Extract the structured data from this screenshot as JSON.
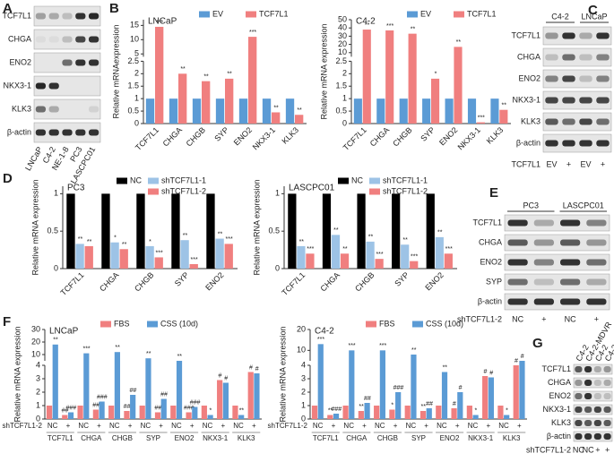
{
  "panel_letters": [
    "A",
    "B",
    "C",
    "D",
    "E",
    "F",
    "G"
  ],
  "blots": [
    {
      "rows": [
        "TCF7L1",
        "CHGA",
        "ENO2",
        "NKX3-1",
        "KLK3",
        "β-actin"
      ],
      "columns": [
        "LNCaP",
        "C4-2",
        "NE-1-8",
        "PC3",
        "LASCPC01"
      ]
    },
    {
      "headers": [
        "C4-2",
        "LNCaP"
      ],
      "rows": [
        "TCF7L1",
        "CHGA",
        "ENO2",
        "NKX3-1",
        "KLK3",
        "β-actin"
      ],
      "condition_label": "TCF7L1",
      "conditions": [
        "EV",
        "+",
        "EV",
        "+"
      ]
    },
    {
      "headers": [
        "PC3",
        "LASCPC01"
      ],
      "rows": [
        "TCF7L1",
        "CHGA",
        "ENO2",
        "SYP",
        "β-actin"
      ],
      "condition_label": "shTCF7L1-2",
      "conditions": [
        "NC",
        "+",
        "NC",
        "+"
      ]
    },
    {
      "columns": [
        "C4-2",
        "C4-2-MDVR",
        "C4-2",
        "C4-2-MDVR"
      ],
      "rows": [
        "TCF7L1",
        "CHGA",
        "ENO2",
        "NKX3-1",
        "KLK3",
        "β-actin"
      ],
      "condition_label": "shTCF7L1-2",
      "conditions": [
        "NC",
        "NC",
        "+",
        "+"
      ]
    }
  ],
  "chart_data": [
    {
      "type": "bar",
      "title": "LNCaP",
      "ylabel": "Relative mRNAexpression",
      "categories": [
        "TCF7L1",
        "CHGA",
        "CHGB",
        "SYP",
        "ENO2",
        "NKX3-1",
        "KLK3"
      ],
      "segments": [
        {
          "ylim": [
            0,
            2.5
          ],
          "yticks": [
            0,
            0.5,
            1,
            1.5,
            2,
            2.5
          ]
        },
        {
          "ylim": [
            4,
            17
          ],
          "yticks": [
            5,
            10,
            15
          ]
        }
      ],
      "series": [
        {
          "name": "EV",
          "color": "#5b9bd5",
          "values": [
            1,
            1,
            1,
            1,
            1,
            1,
            1
          ]
        },
        {
          "name": "TCF7L1",
          "color": "#f07f7f",
          "values": [
            14.5,
            2.0,
            1.7,
            1.8,
            11,
            0.45,
            0.35
          ],
          "annotations": [
            "***",
            "**",
            "**",
            "**",
            "***",
            "**",
            "**"
          ]
        }
      ]
    },
    {
      "type": "bar",
      "title": "C4-2",
      "ylabel": "Relative mRNA expression",
      "categories": [
        "TCF7L1",
        "CHGA",
        "CHGB",
        "SYP",
        "ENO2",
        "NKX3-1",
        "KLK3"
      ],
      "segments": [
        {
          "ylim": [
            0,
            2.5
          ],
          "yticks": [
            0,
            0.5,
            1,
            1.5,
            2,
            2.5
          ]
        },
        {
          "ylim": [
            5,
            50
          ],
          "yticks": [
            10,
            20,
            30,
            40,
            50
          ]
        }
      ],
      "series": [
        {
          "name": "EV",
          "color": "#5b9bd5",
          "values": [
            1,
            1,
            1,
            1,
            1,
            1,
            1
          ]
        },
        {
          "name": "TCF7L1",
          "color": "#f07f7f",
          "values": [
            38,
            37,
            33,
            1.8,
            17,
            0.05,
            0.55
          ],
          "annotations": [
            "**",
            "***",
            "**",
            "*",
            "**",
            "***",
            "**"
          ]
        }
      ]
    },
    {
      "type": "bar",
      "title": "PC3",
      "ylabel": "Relative mRNA expression",
      "categories": [
        "TCF7L1",
        "CHGA",
        "CHGB",
        "SYP",
        "ENO2"
      ],
      "segments": [
        {
          "ylim": [
            0,
            1.1
          ],
          "yticks": [
            0,
            0.5,
            1
          ]
        }
      ],
      "series": [
        {
          "name": "NC",
          "color": "#000000",
          "values": [
            1,
            1,
            1,
            1,
            1
          ]
        },
        {
          "name": "shTCF7L1-1",
          "color": "#9dc3e6",
          "values": [
            0.33,
            0.35,
            0.3,
            0.38,
            0.4
          ],
          "annotations": [
            "**",
            "*",
            "*",
            "**",
            "**"
          ]
        },
        {
          "name": "shTCF7L1-2",
          "color": "#f07f7f",
          "values": [
            0.3,
            0.26,
            0.15,
            0.06,
            0.33
          ],
          "annotations": [
            "**",
            "**",
            "***",
            "***",
            "***"
          ]
        }
      ]
    },
    {
      "type": "bar",
      "title": "LASCPC01",
      "ylabel": "Relative mRNA expression",
      "categories": [
        "TCF7L1",
        "CHGA",
        "CHGB",
        "SYP",
        "ENO2"
      ],
      "segments": [
        {
          "ylim": [
            0,
            1.1
          ],
          "yticks": [
            0,
            0.5,
            1
          ]
        }
      ],
      "series": [
        {
          "name": "NC",
          "color": "#000000",
          "values": [
            1,
            1,
            1,
            1,
            1
          ]
        },
        {
          "name": "shTCF7L1-1",
          "color": "#9dc3e6",
          "values": [
            0.3,
            0.45,
            0.36,
            0.32,
            0.42
          ],
          "annotations": [
            "**",
            "**",
            "**",
            "**",
            "**"
          ]
        },
        {
          "name": "shTCF7L1-2",
          "color": "#f07f7f",
          "values": [
            0.2,
            0.2,
            0.13,
            0.1,
            0.2
          ],
          "annotations": [
            "***",
            "**",
            "***",
            "***",
            "***"
          ]
        }
      ]
    },
    {
      "type": "bar",
      "title": "LNCaP",
      "ylabel": "Relative mRNA expression",
      "category_row_label": "shTCF7L1-2",
      "categories": [
        "NC",
        "+",
        "NC",
        "+",
        "NC",
        "+",
        "NC",
        "+",
        "NC",
        "+",
        "NC",
        "+",
        "NC",
        "+"
      ],
      "groups": [
        "TCF7L1",
        "CHGA",
        "CHGB",
        "SYP",
        "ENO2",
        "NKX3-1",
        "KLK3"
      ],
      "segments": [
        {
          "ylim": [
            0,
            4
          ],
          "yticks": [
            0,
            1,
            2,
            3,
            4
          ]
        },
        {
          "ylim": [
            5,
            30
          ],
          "yticks": [
            10,
            20,
            30
          ]
        }
      ],
      "series": [
        {
          "name": "FBS",
          "color": "#f07f7f",
          "values": [
            1,
            0.3,
            1,
            0.7,
            1,
            0.6,
            1,
            0.5,
            1,
            0.5,
            1,
            2.9,
            1,
            3.5
          ],
          "annotations": [
            null,
            "##",
            null,
            "##",
            null,
            "##",
            null,
            "##",
            null,
            "###",
            null,
            "#",
            null,
            "#"
          ]
        },
        {
          "name": "CSS (10d)",
          "color": "#5b9bd5",
          "values": [
            18,
            0.5,
            11,
            1.3,
            12,
            1.8,
            7,
            1.5,
            5,
            0.9,
            0.3,
            2.7,
            0.3,
            3.4
          ],
          "annotations": [
            "**",
            "###",
            "***",
            "###",
            "**",
            "##",
            "**",
            "##",
            "**",
            "###",
            "*",
            "#",
            "**",
            "#"
          ]
        }
      ]
    },
    {
      "type": "bar",
      "title": "C4-2",
      "ylabel": "Relative mRNA expression",
      "category_row_label": "shTCF7L1-2",
      "categories": [
        "NC",
        "+",
        "NC",
        "+",
        "NC",
        "+",
        "NC",
        "+",
        "NC",
        "+",
        "NC",
        "+",
        "NC",
        "+"
      ],
      "groups": [
        "TCF7L1",
        "CHGA",
        "CHGB",
        "SYP",
        "ENO2",
        "NKX3-1",
        "KLK3"
      ],
      "segments": [
        {
          "ylim": [
            0,
            4
          ],
          "yticks": [
            0,
            1,
            2,
            3,
            4
          ]
        },
        {
          "ylim": [
            5,
            20
          ],
          "yticks": [
            10,
            20
          ]
        }
      ],
      "series": [
        {
          "name": "FBS",
          "color": "#f07f7f",
          "values": [
            1,
            0.3,
            1,
            0.6,
            1,
            0.7,
            1,
            0.6,
            1,
            0.8,
            1,
            3.2,
            1,
            4.0
          ],
          "annotations": [
            null,
            "**",
            null,
            "**",
            null,
            "*",
            null,
            "**",
            null,
            "#",
            null,
            "#",
            null,
            "#"
          ]
        },
        {
          "name": "CSS (10d)",
          "color": "#5b9bd5",
          "values": [
            13,
            0.4,
            10,
            1.2,
            10,
            2,
            8,
            0.8,
            3.5,
            2,
            0.3,
            3.1,
            0.3,
            4.1
          ],
          "annotations": [
            "***",
            "###",
            "***",
            "##",
            "***",
            "###",
            "**",
            "##",
            "**",
            "#",
            "*",
            "#",
            "*",
            "#"
          ]
        }
      ]
    }
  ]
}
